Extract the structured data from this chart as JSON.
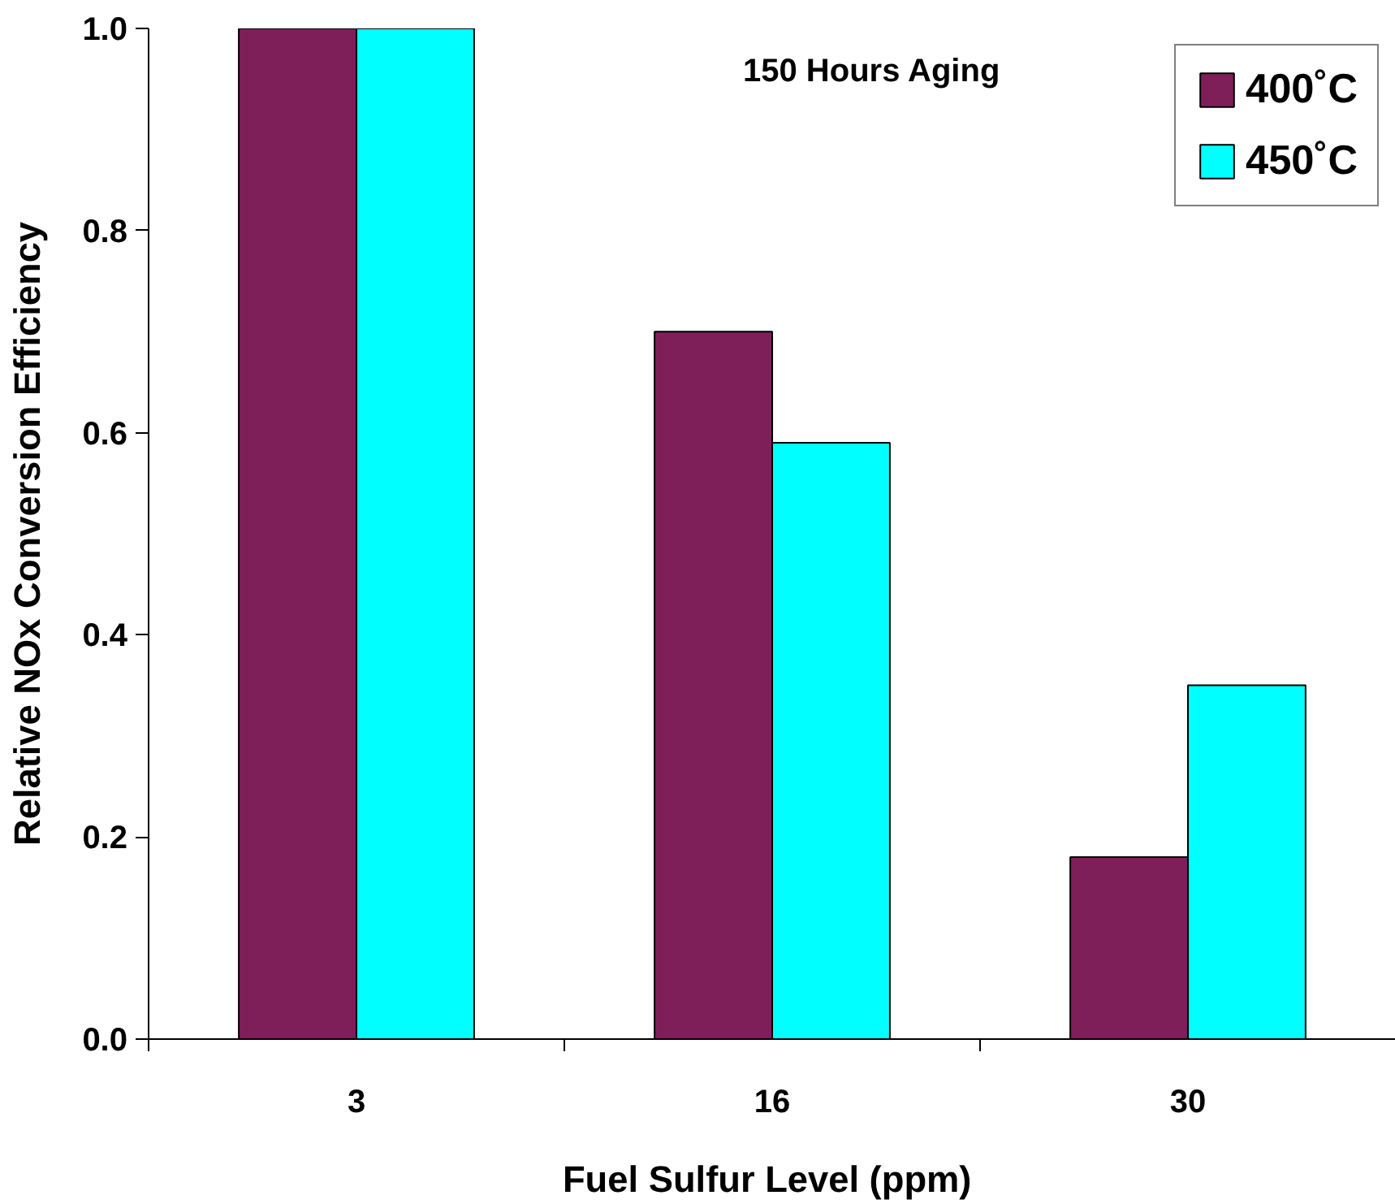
{
  "chart_data": {
    "type": "bar",
    "xlabel": "Fuel Sulfur Level  (ppm)",
    "ylabel": "Relative NOx Conversion Efficiency",
    "annotations": [
      "150 Hours Aging"
    ],
    "categories": [
      "3",
      "16",
      "30"
    ],
    "series": [
      {
        "name": "400˚C",
        "color": "#7f1f5a",
        "values": [
          1.0,
          0.7,
          0.18
        ]
      },
      {
        "name": "450˚C",
        "color": "#00ffff",
        "values": [
          1.0,
          0.59,
          0.35
        ]
      }
    ],
    "ylim": [
      0,
      1.0
    ],
    "yticks": [
      {
        "value": 0,
        "label": "0.0"
      },
      {
        "value": 0.2,
        "label": "0.2"
      },
      {
        "value": 0.4,
        "label": "0.4"
      },
      {
        "value": 0.6,
        "label": "0.6"
      },
      {
        "value": 0.8,
        "label": "0.8"
      },
      {
        "value": 1.0,
        "label": "1.0"
      }
    ],
    "grid": false,
    "legend": "top right"
  }
}
